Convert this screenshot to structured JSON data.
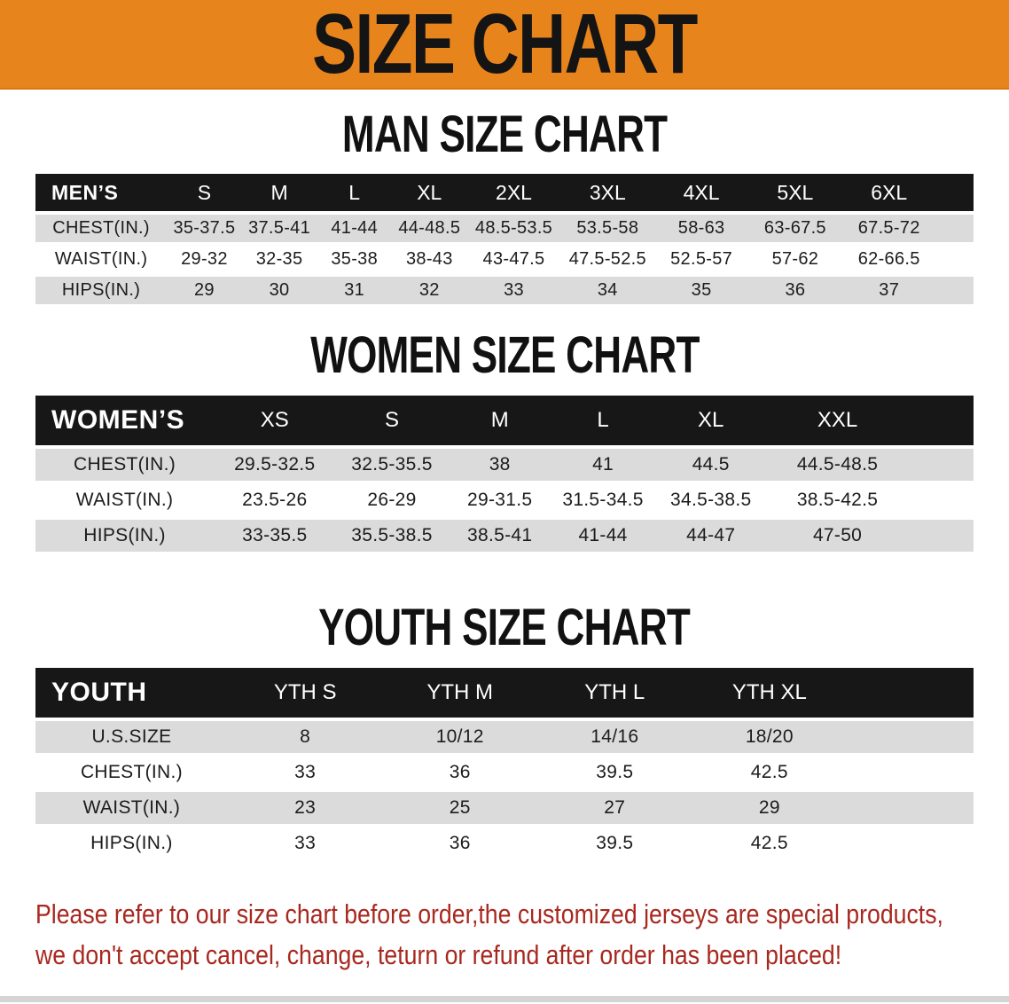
{
  "banner": {
    "title": "SIZE CHART",
    "bg_color": "#E8841C"
  },
  "sections": [
    {
      "heading": "MAN SIZE CHART",
      "table": {
        "header_label": "MEN’S",
        "columns": [
          "S",
          "M",
          "L",
          "XL",
          "2XL",
          "3XL",
          "4XL",
          "5XL",
          "6XL"
        ],
        "rows": [
          {
            "label": "CHEST(IN.)",
            "shaded": true,
            "values": [
              "35-37.5",
              "37.5-41",
              "41-44",
              "44-48.5",
              "48.5-53.5",
              "53.5-58",
              "58-63",
              "63-67.5",
              "67.5-72"
            ]
          },
          {
            "label": "WAIST(IN.)",
            "shaded": false,
            "values": [
              "29-32",
              "32-35",
              "35-38",
              "38-43",
              "43-47.5",
              "47.5-52.5",
              "52.5-57",
              "57-62",
              "62-66.5"
            ]
          },
          {
            "label": "HIPS(IN.)",
            "shaded": true,
            "values": [
              "29",
              "30",
              "31",
              "32",
              "33",
              "34",
              "35",
              "36",
              "37"
            ]
          }
        ]
      }
    },
    {
      "heading": "WOMEN SIZE CHART",
      "table": {
        "header_label": "WOMEN’S",
        "columns": [
          "XS",
          "S",
          "M",
          "L",
          "XL",
          "XXL"
        ],
        "rows": [
          {
            "label": "CHEST(IN.)",
            "shaded": true,
            "values": [
              "29.5-32.5",
              "32.5-35.5",
              "38",
              "41",
              "44.5",
              "44.5-48.5"
            ]
          },
          {
            "label": "WAIST(IN.)",
            "shaded": false,
            "values": [
              "23.5-26",
              "26-29",
              "29-31.5",
              "31.5-34.5",
              "34.5-38.5",
              "38.5-42.5"
            ]
          },
          {
            "label": "HIPS(IN.)",
            "shaded": true,
            "values": [
              "33-35.5",
              "35.5-38.5",
              "38.5-41",
              "41-44",
              "44-47",
              "47-50"
            ]
          }
        ]
      }
    },
    {
      "heading": "YOUTH SIZE CHART",
      "table": {
        "header_label": "YOUTH",
        "columns": [
          "YTH S",
          "YTH M",
          "YTH L",
          "YTH XL"
        ],
        "rows": [
          {
            "label": "U.S.SIZE",
            "shaded": true,
            "values": [
              "8",
              "10/12",
              "14/16",
              "18/20"
            ]
          },
          {
            "label": "CHEST(IN.)",
            "shaded": false,
            "values": [
              "33",
              "36",
              "39.5",
              "42.5"
            ]
          },
          {
            "label": "WAIST(IN.)",
            "shaded": true,
            "values": [
              "23",
              "25",
              "27",
              "29"
            ]
          },
          {
            "label": "HIPS(IN.)",
            "shaded": false,
            "values": [
              "33",
              "36",
              "39.5",
              "42.5"
            ]
          }
        ]
      }
    }
  ],
  "disclaimer": {
    "line1": "Please refer to our size chart before order,the customized jerseys are special products,",
    "line2": "we don't accept cancel, change, teturn or refund after order has been placed!",
    "color": "#A8281F"
  },
  "colors": {
    "header_band_black": "#171717",
    "shaded_row_gray": "#DBDBDB",
    "bottom_strip_gray": "#D5D5D5"
  }
}
